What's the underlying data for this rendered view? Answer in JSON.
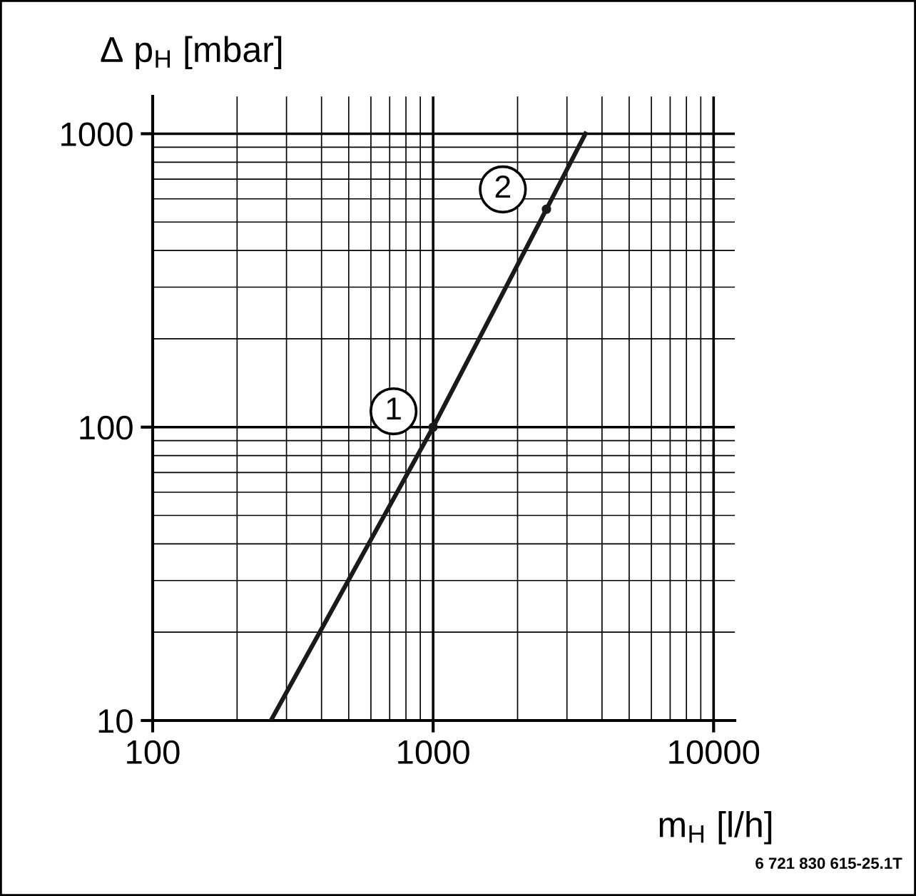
{
  "chart_data": {
    "type": "line",
    "xlabel": "m$_{H}$ [l/h]",
    "ylabel": "Δ p$_{H}$ [mbar]",
    "log": "xy",
    "grid": true,
    "xlim": [
      100,
      11900
    ],
    "ylim": [
      10,
      1340
    ],
    "xticks": [
      100,
      1000,
      10000
    ],
    "yticks": [
      10,
      100,
      1000
    ],
    "series": [
      {
        "color": "#1a1a1a",
        "x": [
          264,
          1000,
          2535,
          3490
        ],
        "values": [
          10,
          100,
          553,
          1000
        ],
        "marker": "none"
      },
      {
        "type": "scatter",
        "color": "#1a1a1a",
        "x": [
          1000,
          2535
        ],
        "values": [
          100,
          553
        ],
        "marker": "circle"
      }
    ],
    "annotations": [
      {
        "text": "1",
        "x": 1000,
        "y": 100
      },
      {
        "text": "2",
        "x": 2535,
        "y": 553
      },
      "6 721 830 615-25.1T"
    ]
  }
}
